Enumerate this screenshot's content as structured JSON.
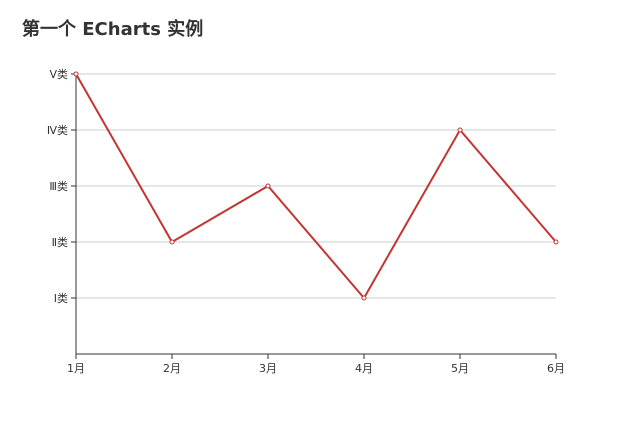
{
  "chart_data": {
    "type": "line",
    "title": "第一个 ECharts 实例",
    "categories": [
      "1月",
      "2月",
      "3月",
      "4月",
      "5月",
      "6月"
    ],
    "y_categories": [
      "Ⅰ类",
      "Ⅱ类",
      "Ⅲ类",
      "Ⅳ类",
      "Ⅴ类"
    ],
    "series": [
      {
        "values": [
          "Ⅴ类",
          "Ⅱ类",
          "Ⅲ类",
          "Ⅰ类",
          "Ⅳ类",
          "Ⅱ类"
        ]
      }
    ],
    "xlabel": "",
    "ylabel": "",
    "grid": true,
    "legend": false,
    "colors": {
      "line": "#c23531",
      "axis": "#333333",
      "grid": "#cccccc"
    }
  }
}
